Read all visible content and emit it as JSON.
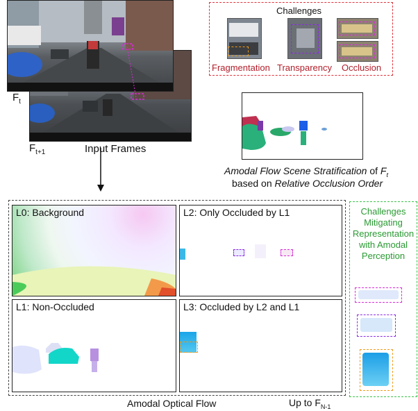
{
  "frames": {
    "ft_label": "F",
    "ft_sub": "t",
    "ft1_label": "F",
    "ft1_sub": "t+1",
    "caption": "Input Frames"
  },
  "challenges_box": {
    "title": "Challenges",
    "items": [
      "Fragmentation",
      "Transparency",
      "Occlusion"
    ],
    "color": "#b01e2a"
  },
  "stratification": {
    "line1_italic": "Amodal Flow Scene Stratification",
    "line1_rest": " of ",
    "line1_var": "F",
    "line1_var_sub": "t",
    "line2_rest": "based on ",
    "line2_italic": "Relative Occlusion Order"
  },
  "layers": [
    {
      "title": "L0: Background"
    },
    {
      "title": "L2: Only Occluded by L1"
    },
    {
      "title": "L1: Non-Occluded"
    },
    {
      "title": "L3: Occluded by L2 and L1"
    }
  ],
  "mitigating": {
    "text": "Challenges Mitigating Representation with Amodal Perception",
    "color": "#2a9a33"
  },
  "footer": {
    "amodal_flow": "Amodal Optical Flow",
    "upto": "Up to F",
    "upto_sub": "N-1"
  }
}
